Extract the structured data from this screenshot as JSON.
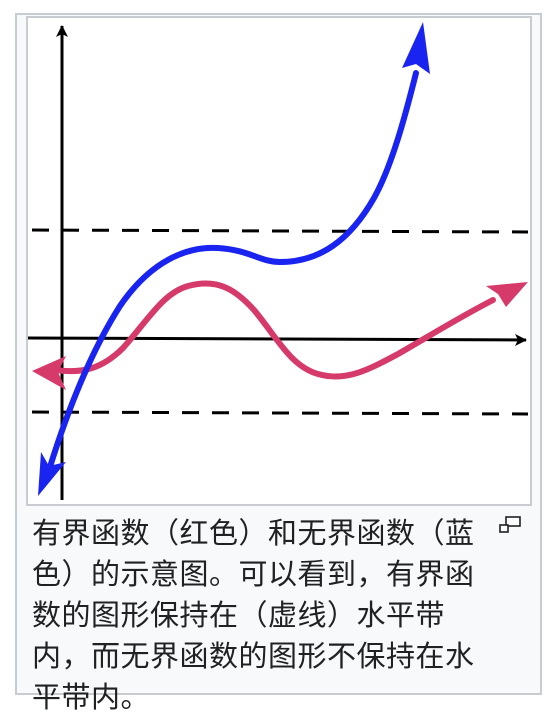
{
  "figure": {
    "caption": "有界函数（红色）和无界函数（蓝色）的示意图。可以看到，有界函数的图形保持在（虚线）水平带内，而无界函数的图形不保持在水平带内。",
    "colors": {
      "bounded_curve": "#d63a6b",
      "unbounded_curve": "#1a24f0",
      "axes": "#000000",
      "dashed_bounds": "#000000",
      "frame_border": "#c8ccd1",
      "frame_background": "#f8f9fa"
    },
    "icons": {
      "enlarge": "magnify-clip-icon"
    }
  }
}
